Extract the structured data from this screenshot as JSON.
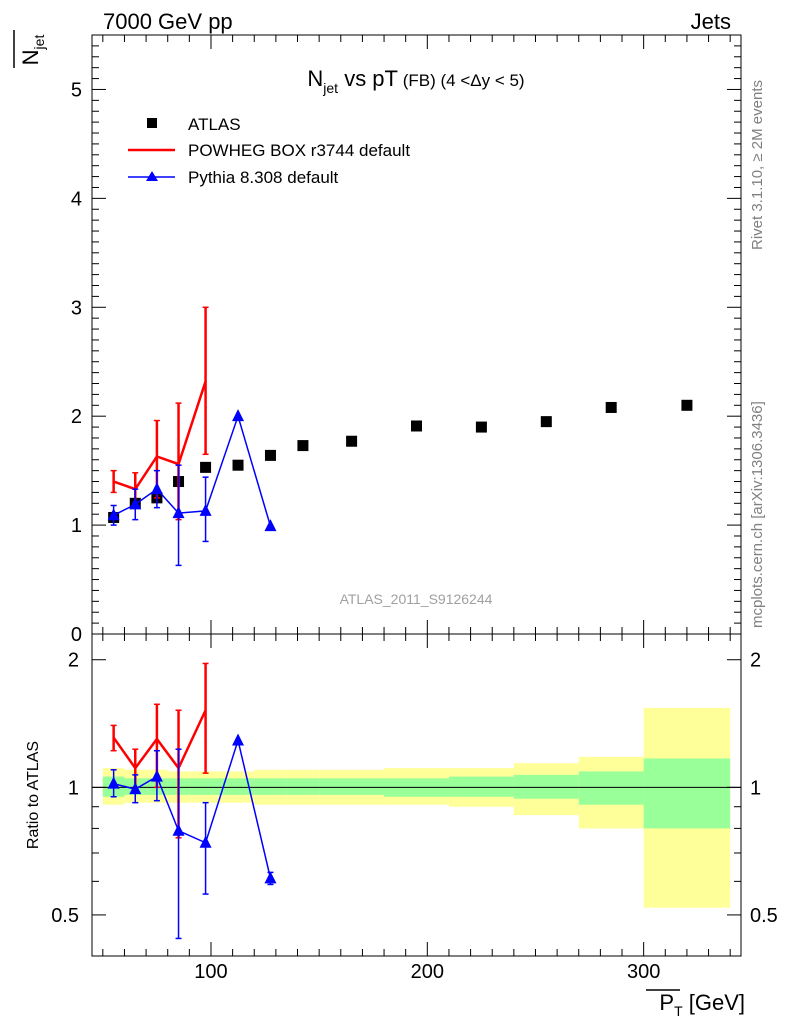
{
  "header": {
    "left": "7000 GeV pp",
    "right": "Jets"
  },
  "title": {
    "main": "N",
    "main_sub": "jet",
    "main_rest": " vs pT",
    "small": " (FB) (4 <Δy < 5)"
  },
  "side_labels": {
    "rivet": "Rivet 3.1.10, ≥ 2M events",
    "mcplots": "mcplots.cern.ch [arXiv:1306.3436]"
  },
  "watermark": "ATLAS_2011_S9126244",
  "ylabel_main": {
    "base": "N",
    "sub": "jet"
  },
  "ylabel_ratio": "Ratio to ATLAS",
  "xlabel": {
    "base": "P",
    "sub": "T",
    "unit": " [GeV]"
  },
  "legend": [
    {
      "label": "ATLAS",
      "marker": "square",
      "color": "#000000"
    },
    {
      "label": "POWHEG BOX r3744 default",
      "marker": "line",
      "color": "#ff0000"
    },
    {
      "label": "Pythia 8.308 default",
      "marker": "triangle",
      "color": "#0000ff"
    }
  ],
  "chart_data": {
    "type": "scatter",
    "x_range": [
      45,
      345
    ],
    "y_range_main": [
      0,
      5.5
    ],
    "y_range_ratio": [
      0.4,
      2.3
    ],
    "ratio_log_scale": true,
    "x_ticks": [
      100,
      200,
      300
    ],
    "y_ticks_main": [
      0,
      1,
      2,
      3,
      4,
      5
    ],
    "y_ticks_ratio": [
      0.5,
      1,
      2
    ],
    "atlas": {
      "x": [
        55,
        65,
        75,
        85,
        97.5,
        112.5,
        127.5,
        142.5,
        165,
        195,
        225,
        255,
        285,
        320
      ],
      "y": [
        1.07,
        1.2,
        1.25,
        1.4,
        1.53,
        1.55,
        1.64,
        1.73,
        1.77,
        1.91,
        1.9,
        1.95,
        2.08,
        2.1
      ]
    },
    "ratio_bands": [
      {
        "x": [
          50,
          60
        ],
        "inner": [
          0.95,
          1.06
        ],
        "outer": [
          0.91,
          1.11
        ]
      },
      {
        "x": [
          60,
          70
        ],
        "inner": [
          0.96,
          1.05
        ],
        "outer": [
          0.92,
          1.1
        ]
      },
      {
        "x": [
          70,
          80
        ],
        "inner": [
          0.96,
          1.05
        ],
        "outer": [
          0.92,
          1.1
        ]
      },
      {
        "x": [
          80,
          90
        ],
        "inner": [
          0.96,
          1.05
        ],
        "outer": [
          0.92,
          1.09
        ]
      },
      {
        "x": [
          90,
          105
        ],
        "inner": [
          0.96,
          1.05
        ],
        "outer": [
          0.92,
          1.09
        ]
      },
      {
        "x": [
          105,
          120
        ],
        "inner": [
          0.96,
          1.05
        ],
        "outer": [
          0.92,
          1.09
        ]
      },
      {
        "x": [
          120,
          135
        ],
        "inner": [
          0.96,
          1.05
        ],
        "outer": [
          0.91,
          1.1
        ]
      },
      {
        "x": [
          135,
          150
        ],
        "inner": [
          0.96,
          1.05
        ],
        "outer": [
          0.91,
          1.1
        ]
      },
      {
        "x": [
          150,
          180
        ],
        "inner": [
          0.96,
          1.05
        ],
        "outer": [
          0.91,
          1.1
        ]
      },
      {
        "x": [
          180,
          210
        ],
        "inner": [
          0.95,
          1.05
        ],
        "outer": [
          0.91,
          1.11
        ]
      },
      {
        "x": [
          210,
          240
        ],
        "inner": [
          0.95,
          1.06
        ],
        "outer": [
          0.9,
          1.11
        ]
      },
      {
        "x": [
          240,
          270
        ],
        "inner": [
          0.94,
          1.07
        ],
        "outer": [
          0.86,
          1.14
        ]
      },
      {
        "x": [
          270,
          300
        ],
        "inner": [
          0.91,
          1.09
        ],
        "outer": [
          0.8,
          1.18
        ]
      },
      {
        "x": [
          300,
          340
        ],
        "inner": [
          0.8,
          1.17
        ],
        "outer": [
          0.52,
          1.54
        ]
      }
    ],
    "series": [
      {
        "name": "POWHEG BOX r3744 default",
        "color": "#ff0000",
        "marker": "none",
        "x": [
          55,
          65,
          75,
          85,
          97.5
        ],
        "y": [
          1.4,
          1.33,
          1.63,
          1.56,
          2.32
        ],
        "y_err": [
          [
            1.3,
            1.5
          ],
          [
            1.2,
            1.48
          ],
          [
            1.25,
            1.96
          ],
          [
            1.05,
            2.12
          ],
          [
            1.65,
            3.0
          ]
        ],
        "ratio": [
          1.31,
          1.11,
          1.3,
          1.11,
          1.52
        ],
        "ratio_err": [
          [
            1.22,
            1.4
          ],
          [
            1.0,
            1.23
          ],
          [
            1.0,
            1.57
          ],
          [
            0.76,
            1.52
          ],
          [
            1.08,
            1.96
          ]
        ]
      },
      {
        "name": "Pythia 8.308 default",
        "color": "#0000ff",
        "marker": "triangle",
        "x": [
          55,
          65,
          75,
          85,
          97.5,
          112.5,
          127.5
        ],
        "y": [
          1.09,
          1.19,
          1.33,
          1.11,
          1.13,
          2.0,
          0.99
        ],
        "y_err": [
          [
            1.0,
            1.18
          ],
          [
            1.05,
            1.33
          ],
          [
            1.16,
            1.5
          ],
          [
            0.63,
            1.55
          ],
          [
            0.85,
            1.44
          ],
          [
            2.0,
            2.0
          ],
          [
            0.99,
            0.99
          ]
        ],
        "ratio": [
          1.02,
          0.99,
          1.06,
          0.79,
          0.74,
          1.29,
          0.61
        ],
        "ratio_err": [
          [
            0.95,
            1.1
          ],
          [
            0.92,
            1.07
          ],
          [
            0.93,
            1.22
          ],
          [
            0.44,
            1.23
          ],
          [
            0.56,
            0.92
          ],
          [
            1.29,
            1.29
          ],
          [
            0.59,
            0.63
          ]
        ]
      }
    ]
  }
}
